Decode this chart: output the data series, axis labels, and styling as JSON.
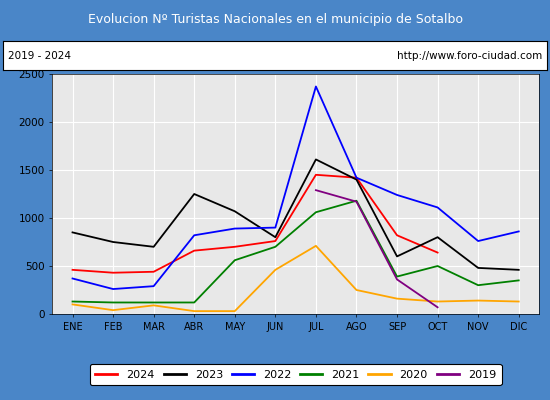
{
  "title": "Evolucion Nº Turistas Nacionales en el municipio de Sotalbo",
  "subtitle_left": "2019 - 2024",
  "subtitle_right": "http://www.foro-ciudad.com",
  "title_bg_color": "#5b9bd5",
  "title_text_color": "white",
  "months": [
    "ENE",
    "FEB",
    "MAR",
    "ABR",
    "MAY",
    "JUN",
    "JUL",
    "AGO",
    "SEP",
    "OCT",
    "NOV",
    "DIC"
  ],
  "ylim": [
    0,
    2500
  ],
  "yticks": [
    0,
    500,
    1000,
    1500,
    2000,
    2500
  ],
  "series": {
    "2024": {
      "color": "red",
      "data": [
        460,
        430,
        440,
        660,
        700,
        760,
        1450,
        1420,
        820,
        640,
        null,
        null
      ]
    },
    "2023": {
      "color": "black",
      "data": [
        850,
        750,
        700,
        1250,
        1070,
        800,
        1610,
        1400,
        600,
        800,
        480,
        460
      ]
    },
    "2022": {
      "color": "blue",
      "data": [
        370,
        260,
        290,
        820,
        890,
        900,
        2370,
        1420,
        1240,
        1110,
        760,
        860
      ]
    },
    "2021": {
      "color": "green",
      "data": [
        130,
        120,
        120,
        120,
        560,
        700,
        1060,
        1180,
        390,
        500,
        300,
        350
      ]
    },
    "2020": {
      "color": "orange",
      "data": [
        100,
        40,
        90,
        30,
        30,
        460,
        710,
        250,
        160,
        130,
        140,
        130
      ]
    },
    "2019": {
      "color": "purple",
      "data": [
        null,
        null,
        null,
        null,
        null,
        null,
        1290,
        1170,
        360,
        70,
        null,
        null
      ]
    }
  },
  "legend_order": [
    "2024",
    "2023",
    "2022",
    "2021",
    "2020",
    "2019"
  ]
}
